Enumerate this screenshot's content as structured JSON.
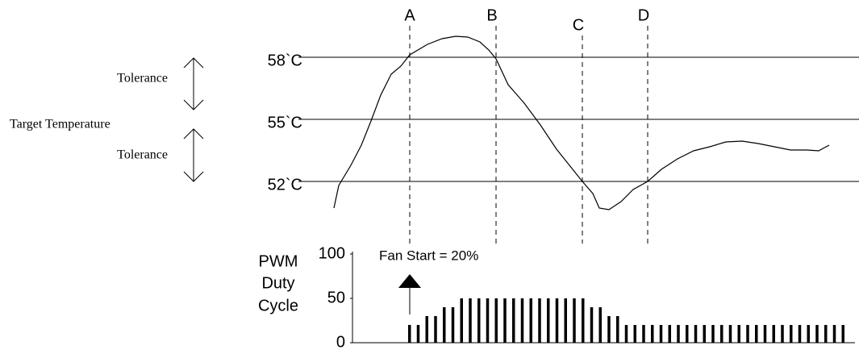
{
  "labels": {
    "tolerance_upper": "Tolerance",
    "target": "Target Temperature",
    "tolerance_lower": "Tolerance"
  },
  "temperatures": [
    "58`C",
    "55`C",
    "52`C"
  ],
  "markers": [
    "A",
    "B",
    "C",
    "D"
  ],
  "pwm": {
    "axis_label": [
      "PWM",
      "Duty",
      "Cycle"
    ],
    "annotation": "Fan Start = 20%",
    "ylim": [
      0,
      100
    ],
    "yticks": [
      0,
      50,
      100
    ],
    "values": [
      20,
      20,
      30,
      30,
      40,
      40,
      50,
      50,
      50,
      50,
      50,
      50,
      50,
      50,
      50,
      50,
      50,
      50,
      50,
      50,
      50,
      40,
      40,
      30,
      30,
      20,
      20,
      20,
      20,
      20,
      20,
      20,
      20,
      20,
      20,
      20,
      20,
      20,
      20,
      20,
      20,
      20,
      20,
      20,
      20,
      20,
      20,
      20,
      20,
      20,
      20
    ]
  }
}
